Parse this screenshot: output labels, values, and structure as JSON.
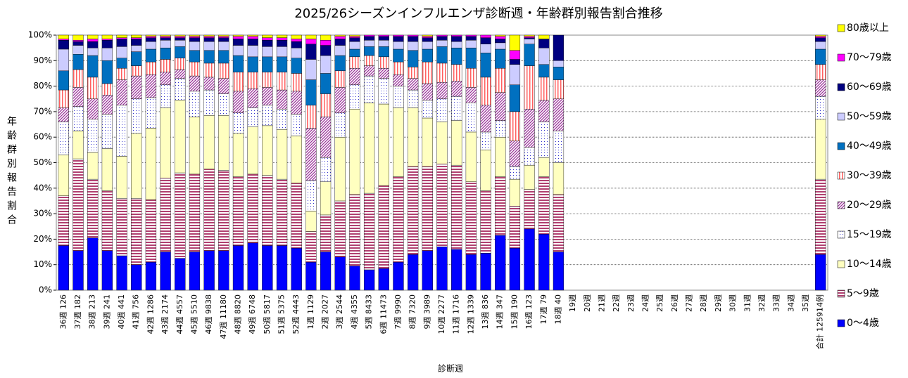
{
  "chart_data": {
    "type": "stacked-bar",
    "title": "2025/26シーズンインフルエンザ診断週・年齢群別報告割合推移",
    "x_label": "診断週",
    "y_label": "年齢群別報告割合",
    "categories": [
      "36週 126",
      "37週 182",
      "38週 213",
      "39週 241",
      "40週 441",
      "41週 756",
      "42週 1286",
      "43週 2174",
      "44週 4557",
      "45週 5510",
      "46週 9838",
      "47週 11180",
      "48週 8820",
      "49週 6748",
      "50週 5817",
      "51週 5375",
      "52週 4443",
      "1週 1129",
      "2週 2027",
      "3週 2544",
      "4週 4355",
      "5週 8433",
      "6週 11473",
      "7週 9990",
      "8週 7320",
      "9週 3989",
      "10週 2277",
      "11週 1716",
      "12週 1339",
      "13週 836",
      "14週 347",
      "15週 190",
      "16週 123",
      "17週 79",
      "18週 40",
      "19週",
      "20週",
      "21週",
      "22週",
      "23週",
      "24週",
      "25週",
      "26週",
      "27週",
      "28週",
      "29週",
      "30週",
      "31週",
      "32週",
      "33週",
      "34週",
      "35週",
      "合計 125914例"
    ],
    "ylim": [
      0,
      100
    ],
    "yticks": [
      {
        "value": 0,
        "label": "0%"
      },
      {
        "value": 10,
        "label": "10%"
      },
      {
        "value": 20,
        "label": "20%"
      },
      {
        "value": 30,
        "label": "30%"
      },
      {
        "value": 40,
        "label": "40%"
      },
      {
        "value": 50,
        "label": "50%"
      },
      {
        "value": 60,
        "label": "60%"
      },
      {
        "value": 70,
        "label": "70%"
      },
      {
        "value": 80,
        "label": "80%"
      },
      {
        "value": 90,
        "label": "90%"
      },
      {
        "value": 100,
        "label": "100%"
      }
    ],
    "grid": true,
    "legend": "right",
    "series": [
      {
        "name": "0～4歳",
        "color": "#0000ff",
        "pattern": "solid",
        "values": [
          17.5,
          15.5,
          20.5,
          15.5,
          13.5,
          10,
          11,
          15,
          12.5,
          15,
          15.5,
          15.5,
          17.5,
          18.5,
          17.5,
          17.5,
          16.5,
          11,
          15,
          13,
          9.5,
          8,
          8.5,
          11,
          14,
          15.5,
          17,
          16,
          14,
          14.5,
          21.5,
          16.5,
          24,
          22,
          15,
          null,
          null,
          null,
          null,
          null,
          null,
          null,
          null,
          null,
          null,
          null,
          null,
          null,
          null,
          null,
          null,
          null,
          14
        ]
      },
      {
        "name": "5～9歳",
        "color": "#b04070",
        "pattern": "hstripe",
        "values": [
          19.5,
          36,
          23,
          23.5,
          22.5,
          26,
          24.5,
          29,
          33.5,
          30.5,
          32,
          31.5,
          27,
          27,
          27.5,
          26,
          25.5,
          12,
          14.5,
          22,
          28,
          30,
          32.5,
          33.5,
          34.5,
          33,
          32.5,
          33,
          28.5,
          24.5,
          23,
          16.5,
          15.5,
          22.5,
          22.5,
          null,
          null,
          null,
          null,
          null,
          null,
          null,
          null,
          null,
          null,
          null,
          null,
          null,
          null,
          null,
          null,
          null,
          29.5
        ]
      },
      {
        "name": "10～14歳",
        "color": "#ffffc0",
        "pattern": "solid",
        "values": [
          16,
          11,
          10.5,
          16.5,
          16.5,
          25.5,
          28,
          27.5,
          28.5,
          22.5,
          21,
          21.5,
          17,
          18.5,
          19.5,
          19.5,
          18.5,
          8,
          13,
          25,
          33.5,
          35.5,
          32,
          27,
          23,
          19,
          16.5,
          17.5,
          19.5,
          16,
          15.5,
          10.5,
          9.5,
          7.5,
          12.5,
          null,
          null,
          null,
          null,
          null,
          null,
          null,
          null,
          null,
          null,
          null,
          null,
          null,
          null,
          null,
          null,
          null,
          23.5
        ]
      },
      {
        "name": "15～19歳",
        "color": "#3333cc",
        "pattern": "dots",
        "values": [
          13,
          9.5,
          13,
          13.5,
          20,
          13.5,
          12,
          9,
          8.5,
          10,
          10,
          8.5,
          8,
          7.5,
          8,
          8,
          8.5,
          12,
          9.5,
          9.5,
          9.5,
          10.5,
          10,
          8.5,
          7,
          7,
          9,
          9.5,
          11.5,
          7,
          6.5,
          5,
          7,
          14,
          12.5,
          null,
          null,
          null,
          null,
          null,
          null,
          null,
          null,
          null,
          null,
          null,
          null,
          null,
          null,
          null,
          null,
          null,
          9
        ]
      },
      {
        "name": "20～29歳",
        "color": "#993399",
        "pattern": "diag",
        "values": [
          5.5,
          7.5,
          8,
          7.5,
          10,
          9,
          9,
          5,
          3.5,
          6,
          5,
          6,
          8.5,
          7.5,
          7,
          7.5,
          9,
          20.5,
          16,
          10,
          6.5,
          4,
          4,
          4.5,
          4.5,
          6.5,
          6.5,
          6,
          6,
          10.5,
          11,
          10,
          15,
          8.5,
          12.5,
          null,
          null,
          null,
          null,
          null,
          null,
          null,
          null,
          null,
          null,
          null,
          null,
          null,
          null,
          null,
          null,
          null,
          6.5
        ]
      },
      {
        "name": "30～39歳",
        "color": "#ff6060",
        "pattern": "vstripe",
        "values": [
          7,
          7,
          8.5,
          4.5,
          4.5,
          4,
          5,
          5,
          4.5,
          5.5,
          5.5,
          6,
          7.5,
          6.5,
          6,
          7,
          7,
          9,
          9,
          6.5,
          4.5,
          4,
          4.5,
          5,
          4.5,
          8.5,
          7.5,
          6.5,
          7.5,
          11,
          9.5,
          11.5,
          17,
          9,
          7.5,
          null,
          null,
          null,
          null,
          null,
          null,
          null,
          null,
          null,
          null,
          null,
          null,
          null,
          null,
          null,
          null,
          null,
          6
        ]
      },
      {
        "name": "40～49歳",
        "color": "#0070c0",
        "pattern": "solid",
        "values": [
          7.5,
          6,
          8.5,
          9,
          4,
          5.5,
          5,
          4.5,
          4.5,
          4.5,
          5,
          5,
          6.5,
          6,
          6,
          6,
          6,
          10,
          8,
          6,
          3,
          3.5,
          4,
          5,
          6.5,
          5,
          6.5,
          6.5,
          8,
          9.5,
          7.5,
          10.5,
          8.5,
          5,
          5,
          null,
          null,
          null,
          null,
          null,
          null,
          null,
          null,
          null,
          null,
          null,
          null,
          null,
          null,
          null,
          null,
          null,
          6
        ]
      },
      {
        "name": "50～59歳",
        "color": "#ccccff",
        "pattern": "solid",
        "values": [
          8.5,
          3.5,
          3,
          5,
          4.5,
          2.5,
          3,
          3,
          2.5,
          3.5,
          3.5,
          3.5,
          4,
          4.5,
          4,
          4,
          4,
          8,
          7,
          4,
          3,
          2.5,
          2.5,
          3,
          3.5,
          3,
          2.5,
          2.5,
          3,
          3.5,
          2.5,
          8,
          2,
          6.5,
          2.5,
          null,
          null,
          null,
          null,
          null,
          null,
          null,
          null,
          null,
          null,
          null,
          null,
          null,
          null,
          null,
          null,
          null,
          3
        ]
      },
      {
        "name": "60～69歳",
        "color": "#000080",
        "pattern": "solid",
        "values": [
          3.5,
          1.5,
          2.5,
          3,
          3,
          2.5,
          1.5,
          1,
          1,
          1.5,
          1.5,
          1.5,
          2.5,
          2.5,
          2.5,
          2.5,
          2.5,
          6,
          4,
          2.5,
          1.5,
          1.5,
          1.5,
          2,
          2,
          1.5,
          1.5,
          2,
          1.5,
          2.5,
          1.5,
          2,
          0.5,
          3.5,
          10,
          null,
          null,
          null,
          null,
          null,
          null,
          null,
          null,
          null,
          null,
          null,
          null,
          null,
          null,
          null,
          null,
          null,
          1.5
        ]
      },
      {
        "name": "70～79歳",
        "color": "#ff00ff",
        "pattern": "solid",
        "values": [
          0.5,
          0.5,
          1,
          0.5,
          0.5,
          0.5,
          0.5,
          0.5,
          0.5,
          0.5,
          0.5,
          0.5,
          1,
          1,
          1,
          1,
          1,
          2,
          2,
          1,
          0.5,
          0.5,
          0.5,
          0.5,
          0.5,
          0.5,
          0.5,
          0.5,
          0.5,
          1,
          1,
          3.5,
          0.5,
          0,
          0,
          null,
          null,
          null,
          null,
          null,
          null,
          null,
          null,
          null,
          null,
          null,
          null,
          null,
          null,
          null,
          null,
          null,
          0.5
        ]
      },
      {
        "name": "80歳以上",
        "color": "#ffff00",
        "pattern": "solid",
        "values": [
          1.5,
          2,
          1.5,
          1.5,
          1,
          1,
          0.5,
          0.5,
          0.5,
          0.5,
          0.5,
          0.5,
          0.5,
          0.5,
          1,
          1,
          1.5,
          1.5,
          2,
          0.5,
          0.5,
          0,
          0,
          0,
          0,
          0.5,
          0,
          0,
          0,
          0,
          0.5,
          6,
          0.5,
          1.5,
          0,
          null,
          null,
          null,
          null,
          null,
          null,
          null,
          null,
          null,
          null,
          null,
          null,
          null,
          null,
          null,
          null,
          null,
          0.5
        ]
      }
    ]
  }
}
